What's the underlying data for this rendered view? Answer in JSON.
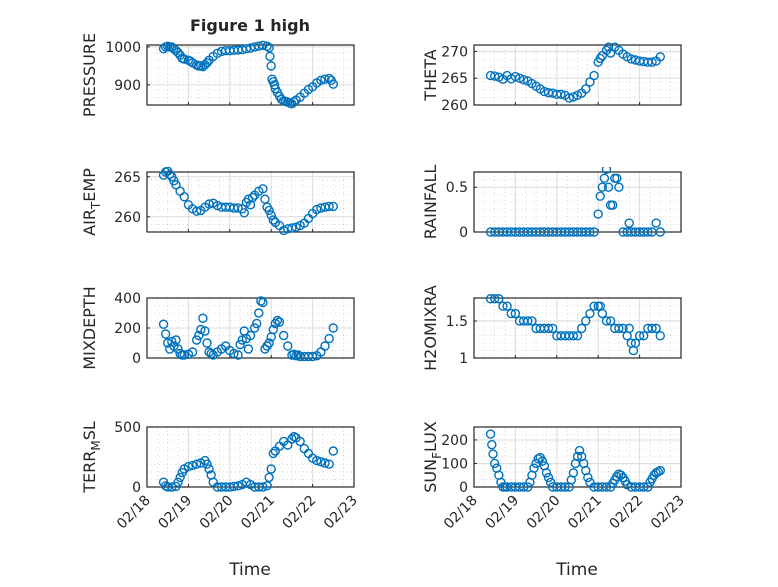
{
  "chart_data": {
    "type": "scatter",
    "title": "Figure 1 high",
    "xlabel": "Time",
    "marker_color": "#0072BD",
    "x_ticks": [
      0,
      1,
      2,
      3,
      4,
      5
    ],
    "x_tick_labels": [
      "02/18",
      "02/19",
      "02/20",
      "02/21",
      "02/22",
      "02/23"
    ],
    "xlim": [
      0,
      5
    ],
    "grid": "on (major + minor)",
    "panels": [
      {
        "ylabel": "PRESSURE",
        "sub": "",
        "ylim": [
          847,
          1005
        ],
        "yticks": [
          900,
          1000
        ],
        "ytick_labels": [
          "900",
          "1000"
        ],
        "show_xticklabels": false,
        "x": [
          0.4,
          0.45,
          0.5,
          0.55,
          0.6,
          0.65,
          0.7,
          0.75,
          0.8,
          0.85,
          0.9,
          1.0,
          1.05,
          1.1,
          1.2,
          1.25,
          1.3,
          1.35,
          1.4,
          1.45,
          1.5,
          1.6,
          1.7,
          1.8,
          1.9,
          2.0,
          2.1,
          2.2,
          2.3,
          2.4,
          2.5,
          2.6,
          2.7,
          2.8,
          2.9,
          2.95,
          2.97,
          3.0,
          3.02,
          3.05,
          3.08,
          3.1,
          3.15,
          3.2,
          3.25,
          3.3,
          3.35,
          3.4,
          3.45,
          3.5,
          3.55,
          3.6,
          3.7,
          3.8,
          3.9,
          4.0,
          4.1,
          4.2,
          4.3,
          4.4,
          4.45,
          4.5
        ],
        "y": [
          995,
          1000,
          1002,
          1000,
          1000,
          995,
          990,
          985,
          978,
          970,
          968,
          965,
          962,
          958,
          952,
          950,
          950,
          948,
          953,
          958,
          965,
          975,
          983,
          988,
          990,
          990,
          991,
          992,
          993,
          995,
          997,
          1000,
          1002,
          1004,
          1002,
          998,
          975,
          950,
          915,
          908,
          900,
          890,
          880,
          870,
          862,
          858,
          856,
          855,
          852,
          850,
          855,
          860,
          868,
          878,
          888,
          895,
          905,
          912,
          915,
          917,
          912,
          902
        ]
      },
      {
        "ylabel": "THETA",
        "sub": "",
        "ylim": [
          260,
          271.2
        ],
        "yticks": [
          260,
          265,
          270
        ],
        "ytick_labels": [
          "260",
          "265",
          "270"
        ],
        "show_xticklabels": false,
        "x": [
          0.4,
          0.5,
          0.6,
          0.7,
          0.8,
          0.9,
          1.0,
          1.1,
          1.2,
          1.3,
          1.4,
          1.5,
          1.6,
          1.7,
          1.8,
          1.9,
          2.0,
          2.1,
          2.2,
          2.3,
          2.4,
          2.5,
          2.6,
          2.7,
          2.8,
          2.9,
          3.0,
          3.05,
          3.1,
          3.2,
          3.25,
          3.3,
          3.4,
          3.5,
          3.6,
          3.7,
          3.8,
          3.9,
          4.0,
          4.1,
          4.2,
          4.3,
          4.4,
          4.5
        ],
        "y": [
          265.5,
          265.4,
          265.2,
          264.8,
          265.5,
          264.9,
          265.3,
          265,
          264.7,
          264.5,
          264,
          263.5,
          263,
          262.5,
          262.3,
          262.2,
          262,
          262,
          261.8,
          261.3,
          261.5,
          261.8,
          262.2,
          263,
          264.3,
          265.5,
          268,
          268.7,
          269.2,
          270.2,
          270.8,
          269.7,
          270.8,
          270.2,
          269.5,
          269,
          268.6,
          268.4,
          268.2,
          268.1,
          268,
          268,
          268.2,
          269
        ]
      },
      {
        "ylabel": "AIR",
        "sub": "T",
        "ylabel2": "EMP",
        "ylim": [
          258.1,
          265.6
        ],
        "yticks": [
          260,
          265
        ],
        "ytick_labels": [
          "260",
          "265"
        ],
        "show_xticklabels": false,
        "x": [
          0.4,
          0.45,
          0.5,
          0.55,
          0.6,
          0.65,
          0.7,
          0.8,
          0.9,
          1.0,
          1.1,
          1.2,
          1.3,
          1.4,
          1.5,
          1.6,
          1.7,
          1.8,
          1.9,
          2.0,
          2.1,
          2.2,
          2.3,
          2.35,
          2.4,
          2.45,
          2.5,
          2.55,
          2.6,
          2.7,
          2.8,
          2.85,
          2.9,
          2.95,
          3.0,
          3.05,
          3.1,
          3.2,
          3.3,
          3.4,
          3.5,
          3.6,
          3.7,
          3.8,
          3.9,
          4.0,
          4.1,
          4.2,
          4.3,
          4.4,
          4.5
        ],
        "y": [
          265.2,
          265.6,
          265.7,
          265.3,
          265,
          264.5,
          264,
          263.2,
          262.5,
          261.5,
          261,
          260.7,
          260.8,
          261.2,
          261.6,
          261.7,
          261.4,
          261.2,
          261.2,
          261.2,
          261.1,
          261.1,
          261,
          260.5,
          261.8,
          262.2,
          261.5,
          262.4,
          262.7,
          263.2,
          263.5,
          262.2,
          261.2,
          260.8,
          260.2,
          259.6,
          259.3,
          258.9,
          258.3,
          258.5,
          258.6,
          258.7,
          258.9,
          259.2,
          259.8,
          260.4,
          260.9,
          261.1,
          261.2,
          261.3,
          261.3
        ]
      },
      {
        "ylabel": "RAINFALL",
        "sub": "",
        "ylim": [
          0,
          0.67
        ],
        "yticks": [
          0,
          0.5
        ],
        "ytick_labels": [
          "0",
          "0.5"
        ],
        "show_xticklabels": false,
        "x": [
          0.4,
          0.5,
          0.6,
          0.7,
          0.8,
          0.9,
          1.0,
          1.1,
          1.2,
          1.3,
          1.4,
          1.5,
          1.6,
          1.7,
          1.8,
          1.9,
          2.0,
          2.1,
          2.2,
          2.3,
          2.4,
          2.5,
          2.6,
          2.7,
          2.8,
          2.9,
          3.0,
          3.05,
          3.1,
          3.15,
          3.2,
          3.25,
          3.3,
          3.35,
          3.4,
          3.45,
          3.5,
          3.6,
          3.7,
          3.75,
          3.8,
          3.9,
          4.0,
          4.1,
          4.2,
          4.3,
          4.4,
          4.5
        ],
        "y": [
          0,
          0,
          0,
          0,
          0,
          0,
          0,
          0,
          0,
          0,
          0,
          0,
          0,
          0,
          0,
          0,
          0,
          0,
          0,
          0,
          0,
          0,
          0,
          0,
          0,
          0,
          0.2,
          0.4,
          0.5,
          0.6,
          0.7,
          0.5,
          0.3,
          0.3,
          0.6,
          0.6,
          0.5,
          0,
          0,
          0.1,
          0,
          0,
          0,
          0,
          0,
          0,
          0.1,
          0
        ]
      },
      {
        "ylabel": "MIXDEPTH",
        "sub": "",
        "ylim": [
          0,
          400
        ],
        "yticks": [
          0,
          200,
          400
        ],
        "ytick_labels": [
          "0",
          "200",
          "400"
        ],
        "show_xticklabels": false,
        "x": [
          0.4,
          0.45,
          0.5,
          0.55,
          0.6,
          0.65,
          0.7,
          0.75,
          0.8,
          0.85,
          0.9,
          1.0,
          1.1,
          1.2,
          1.25,
          1.3,
          1.35,
          1.4,
          1.45,
          1.5,
          1.55,
          1.6,
          1.7,
          1.8,
          1.9,
          2.0,
          2.1,
          2.2,
          2.25,
          2.3,
          2.35,
          2.4,
          2.45,
          2.5,
          2.6,
          2.65,
          2.7,
          2.75,
          2.8,
          2.85,
          2.9,
          2.95,
          3.0,
          3.05,
          3.1,
          3.15,
          3.2,
          3.3,
          3.4,
          3.5,
          3.55,
          3.6,
          3.65,
          3.7,
          3.8,
          3.9,
          4.0,
          4.1,
          4.2,
          4.3,
          4.4,
          4.5
        ],
        "y": [
          225,
          160,
          100,
          60,
          110,
          80,
          120,
          60,
          30,
          20,
          20,
          25,
          40,
          120,
          150,
          190,
          265,
          180,
          100,
          40,
          30,
          20,
          40,
          60,
          80,
          50,
          30,
          20,
          90,
          120,
          180,
          130,
          60,
          150,
          200,
          230,
          300,
          380,
          370,
          60,
          80,
          100,
          140,
          190,
          230,
          250,
          240,
          150,
          80,
          20,
          25,
          15,
          20,
          10,
          10,
          10,
          10,
          15,
          40,
          80,
          130,
          200
        ]
      },
      {
        "ylabel": "H2OMIXRA",
        "sub": "",
        "ylim": [
          1,
          1.81
        ],
        "yticks": [
          1,
          1.5
        ],
        "ytick_labels": [
          "1",
          "1.5"
        ],
        "show_xticklabels": false,
        "x": [
          0.4,
          0.5,
          0.6,
          0.7,
          0.8,
          0.9,
          1.0,
          1.1,
          1.2,
          1.3,
          1.4,
          1.5,
          1.6,
          1.7,
          1.8,
          1.9,
          2.0,
          2.1,
          2.2,
          2.3,
          2.4,
          2.5,
          2.6,
          2.7,
          2.8,
          2.9,
          3.0,
          3.05,
          3.1,
          3.2,
          3.3,
          3.4,
          3.5,
          3.6,
          3.7,
          3.75,
          3.8,
          3.85,
          3.9,
          4.0,
          4.1,
          4.2,
          4.3,
          4.4,
          4.5
        ],
        "y": [
          1.8,
          1.8,
          1.8,
          1.7,
          1.7,
          1.6,
          1.6,
          1.5,
          1.5,
          1.5,
          1.5,
          1.4,
          1.4,
          1.4,
          1.4,
          1.4,
          1.3,
          1.3,
          1.3,
          1.3,
          1.3,
          1.3,
          1.4,
          1.5,
          1.6,
          1.7,
          1.7,
          1.7,
          1.6,
          1.5,
          1.5,
          1.4,
          1.4,
          1.4,
          1.3,
          1.4,
          1.2,
          1.1,
          1.2,
          1.3,
          1.3,
          1.4,
          1.4,
          1.4,
          1.3
        ]
      },
      {
        "ylabel": "TERR",
        "sub": "M",
        "ylabel2": "SL",
        "ylim": [
          0,
          500
        ],
        "yticks": [
          0,
          500
        ],
        "ytick_labels": [
          "0",
          "500"
        ],
        "show_xticklabels": true,
        "x": [
          0.4,
          0.45,
          0.5,
          0.6,
          0.7,
          0.75,
          0.8,
          0.85,
          0.9,
          1.0,
          1.1,
          1.2,
          1.3,
          1.4,
          1.45,
          1.5,
          1.55,
          1.6,
          1.7,
          1.8,
          1.9,
          2.0,
          2.1,
          2.2,
          2.3,
          2.4,
          2.5,
          2.6,
          2.7,
          2.8,
          2.9,
          2.95,
          3.0,
          3.05,
          3.1,
          3.2,
          3.3,
          3.4,
          3.5,
          3.55,
          3.6,
          3.7,
          3.8,
          3.9,
          4.0,
          4.1,
          4.2,
          4.3,
          4.4,
          4.5
        ],
        "y": [
          40,
          10,
          0,
          0,
          5,
          40,
          80,
          120,
          150,
          170,
          180,
          190,
          200,
          220,
          190,
          150,
          100,
          40,
          0,
          0,
          0,
          0,
          5,
          10,
          20,
          40,
          20,
          0,
          0,
          0,
          10,
          80,
          150,
          280,
          300,
          340,
          380,
          350,
          400,
          420,
          410,
          380,
          320,
          280,
          240,
          220,
          210,
          200,
          190,
          300
        ]
      },
      {
        "ylabel": "SUN",
        "sub": "F",
        "ylabel2": "LUX",
        "ylim": [
          0,
          255
        ],
        "yticks": [
          0,
          100,
          200
        ],
        "ytick_labels": [
          "0",
          "100",
          "200"
        ],
        "show_xticklabels": true,
        "x": [
          0.4,
          0.43,
          0.46,
          0.5,
          0.55,
          0.6,
          0.65,
          0.7,
          0.75,
          0.8,
          0.9,
          1.0,
          1.1,
          1.2,
          1.3,
          1.35,
          1.4,
          1.45,
          1.5,
          1.55,
          1.6,
          1.65,
          1.7,
          1.75,
          1.8,
          1.85,
          1.9,
          2.0,
          2.1,
          2.2,
          2.3,
          2.35,
          2.4,
          2.45,
          2.5,
          2.55,
          2.6,
          2.65,
          2.7,
          2.75,
          2.8,
          2.9,
          3.0,
          3.1,
          3.2,
          3.3,
          3.35,
          3.4,
          3.45,
          3.5,
          3.55,
          3.6,
          3.65,
          3.7,
          3.8,
          3.9,
          4.0,
          4.1,
          4.2,
          4.25,
          4.3,
          4.35,
          4.4,
          4.45,
          4.5
        ],
        "y": [
          225,
          180,
          140,
          100,
          80,
          50,
          20,
          0,
          0,
          0,
          0,
          0,
          0,
          0,
          0,
          20,
          50,
          80,
          100,
          120,
          125,
          110,
          90,
          60,
          40,
          20,
          0,
          0,
          0,
          0,
          0,
          30,
          60,
          100,
          130,
          155,
          130,
          100,
          70,
          40,
          20,
          0,
          0,
          0,
          0,
          0,
          15,
          30,
          45,
          55,
          50,
          40,
          25,
          10,
          0,
          0,
          0,
          0,
          0,
          20,
          35,
          50,
          60,
          65,
          70
        ]
      }
    ]
  }
}
